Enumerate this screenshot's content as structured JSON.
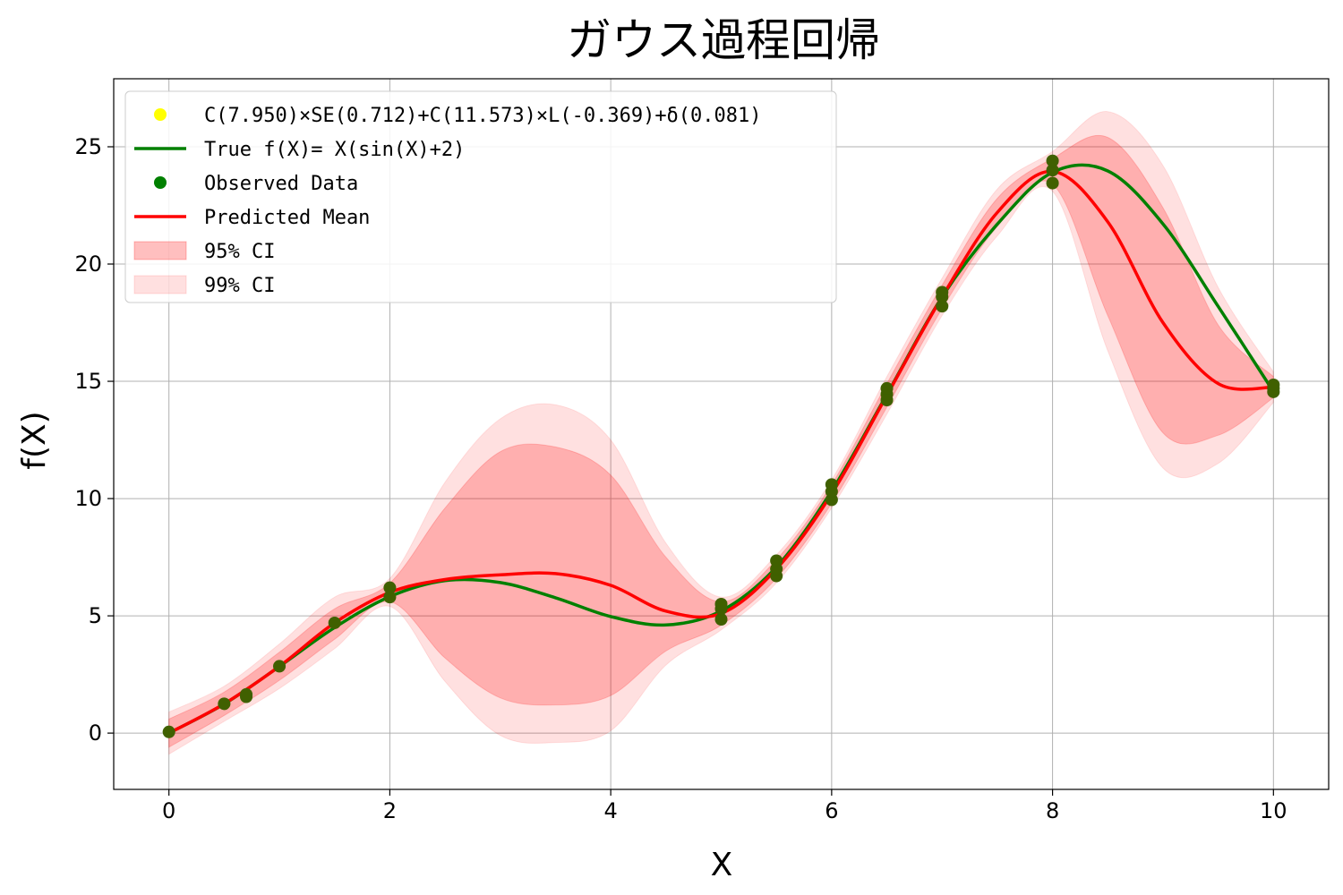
{
  "chart_data": {
    "type": "line",
    "title": "ガウス過程回帰",
    "xlabel": "X",
    "ylabel": "f(X)",
    "xlim": [
      -0.5,
      10.5
    ],
    "ylim": [
      -2.4,
      27.9
    ],
    "xticks": [
      0,
      2,
      4,
      6,
      8,
      10
    ],
    "yticks": [
      0,
      5,
      10,
      15,
      20,
      25
    ],
    "grid": true,
    "legend_position": "top-left",
    "colors": {
      "kernel": "#ffff00",
      "true": "#008000",
      "observed": "#008000",
      "mean": "#ff0000",
      "ci95": "#ff0000",
      "ci99": "#ff0000"
    },
    "legend": [
      {
        "label": "C(7.950)×SE(0.712)+C(11.573)×L(-0.369)+δ(0.081)",
        "kind": "dot",
        "color": "#ffff00"
      },
      {
        "label": "True f(X)= X(sin(X)+2)",
        "kind": "line",
        "color": "#008000"
      },
      {
        "label": "Observed Data",
        "kind": "dot",
        "color": "#008000"
      },
      {
        "label": "Predicted Mean",
        "kind": "line",
        "color": "#ff0000"
      },
      {
        "label": "95% CI",
        "kind": "patch",
        "color": "#ff0000",
        "opacity": 0.25
      },
      {
        "label": "99% CI",
        "kind": "patch",
        "color": "#ff0000",
        "opacity": 0.12
      }
    ],
    "observed": [
      [
        0,
        0.05
      ],
      [
        0.5,
        1.25
      ],
      [
        0.7,
        1.55
      ],
      [
        0.7,
        1.65
      ],
      [
        1,
        2.85
      ],
      [
        1.5,
        4.7
      ],
      [
        2,
        5.8
      ],
      [
        2,
        6.2
      ],
      [
        5,
        4.85
      ],
      [
        5,
        5.3
      ],
      [
        5,
        5.5
      ],
      [
        5.5,
        6.7
      ],
      [
        5.5,
        7.0
      ],
      [
        5.5,
        7.35
      ],
      [
        6,
        9.95
      ],
      [
        6,
        10.3
      ],
      [
        6,
        10.6
      ],
      [
        6.5,
        14.2
      ],
      [
        6.5,
        14.45
      ],
      [
        6.5,
        14.7
      ],
      [
        7,
        18.2
      ],
      [
        7,
        18.6
      ],
      [
        7,
        18.8
      ],
      [
        8,
        23.45
      ],
      [
        8,
        24.0
      ],
      [
        8,
        24.4
      ],
      [
        10,
        14.55
      ],
      [
        10,
        14.7
      ],
      [
        10,
        14.85
      ]
    ],
    "series": [
      {
        "name": "Predicted Mean",
        "x": [
          0,
          0.5,
          1,
          1.5,
          2,
          2.5,
          3,
          3.5,
          4,
          4.5,
          5,
          5.5,
          6,
          6.5,
          7,
          7.5,
          8,
          8.5,
          9,
          9.5,
          10
        ],
        "values": [
          0.0,
          1.25,
          2.85,
          4.7,
          6.0,
          6.55,
          6.75,
          6.8,
          6.3,
          5.2,
          5.1,
          7.0,
          10.2,
          14.4,
          18.6,
          22.2,
          23.95,
          21.8,
          17.5,
          14.9,
          14.75
        ]
      },
      {
        "name": "True f(X)= X(sin(X)+2)",
        "x": [
          0,
          0.5,
          1,
          1.5,
          2,
          2.5,
          3,
          3.5,
          4,
          4.5,
          5,
          5.5,
          6,
          6.5,
          7,
          7.5,
          8,
          8.5,
          9,
          9.5,
          10
        ],
        "values": [
          0.0,
          1.24,
          2.84,
          4.5,
          5.82,
          6.5,
          6.42,
          5.77,
          4.97,
          4.61,
          5.21,
          7.08,
          10.32,
          14.44,
          18.6,
          21.7,
          23.91,
          23.97,
          21.71,
          18.19,
          14.56
        ]
      }
    ],
    "ci95": {
      "x": [
        0,
        0.5,
        1,
        1.5,
        2,
        2.5,
        3,
        3.5,
        4,
        4.5,
        5,
        5.5,
        6,
        6.5,
        7,
        7.5,
        8,
        8.5,
        9,
        9.5,
        10
      ],
      "lower": [
        -0.6,
        0.75,
        2.25,
        4.0,
        5.6,
        3.2,
        1.5,
        1.2,
        1.6,
        3.5,
        4.6,
        6.6,
        9.8,
        13.9,
        18.1,
        21.6,
        23.4,
        17.8,
        12.8,
        12.7,
        14.3
      ],
      "upper": [
        0.6,
        1.75,
        3.45,
        5.3,
        6.4,
        9.6,
        12.0,
        12.2,
        11.0,
        7.5,
        5.6,
        7.4,
        10.6,
        14.9,
        19.1,
        22.8,
        24.5,
        25.4,
        22.4,
        17.4,
        15.2
      ]
    },
    "ci99": {
      "x": [
        0,
        0.5,
        1,
        1.5,
        2,
        2.5,
        3,
        3.5,
        4,
        4.5,
        5,
        5.5,
        6,
        6.5,
        7,
        7.5,
        8,
        8.5,
        9,
        9.5,
        10
      ],
      "lower": [
        -0.9,
        0.5,
        1.9,
        3.6,
        5.4,
        2.2,
        -0.1,
        -0.4,
        0.1,
        2.9,
        4.4,
        6.4,
        9.6,
        13.6,
        17.8,
        21.2,
        23.1,
        16.3,
        11.3,
        11.5,
        14.1
      ],
      "upper": [
        0.9,
        2.0,
        3.8,
        5.8,
        6.6,
        10.7,
        13.4,
        14.0,
        12.5,
        8.1,
        5.8,
        7.6,
        10.8,
        15.2,
        19.4,
        23.2,
        24.8,
        26.5,
        24.2,
        19.0,
        15.4
      ]
    }
  }
}
